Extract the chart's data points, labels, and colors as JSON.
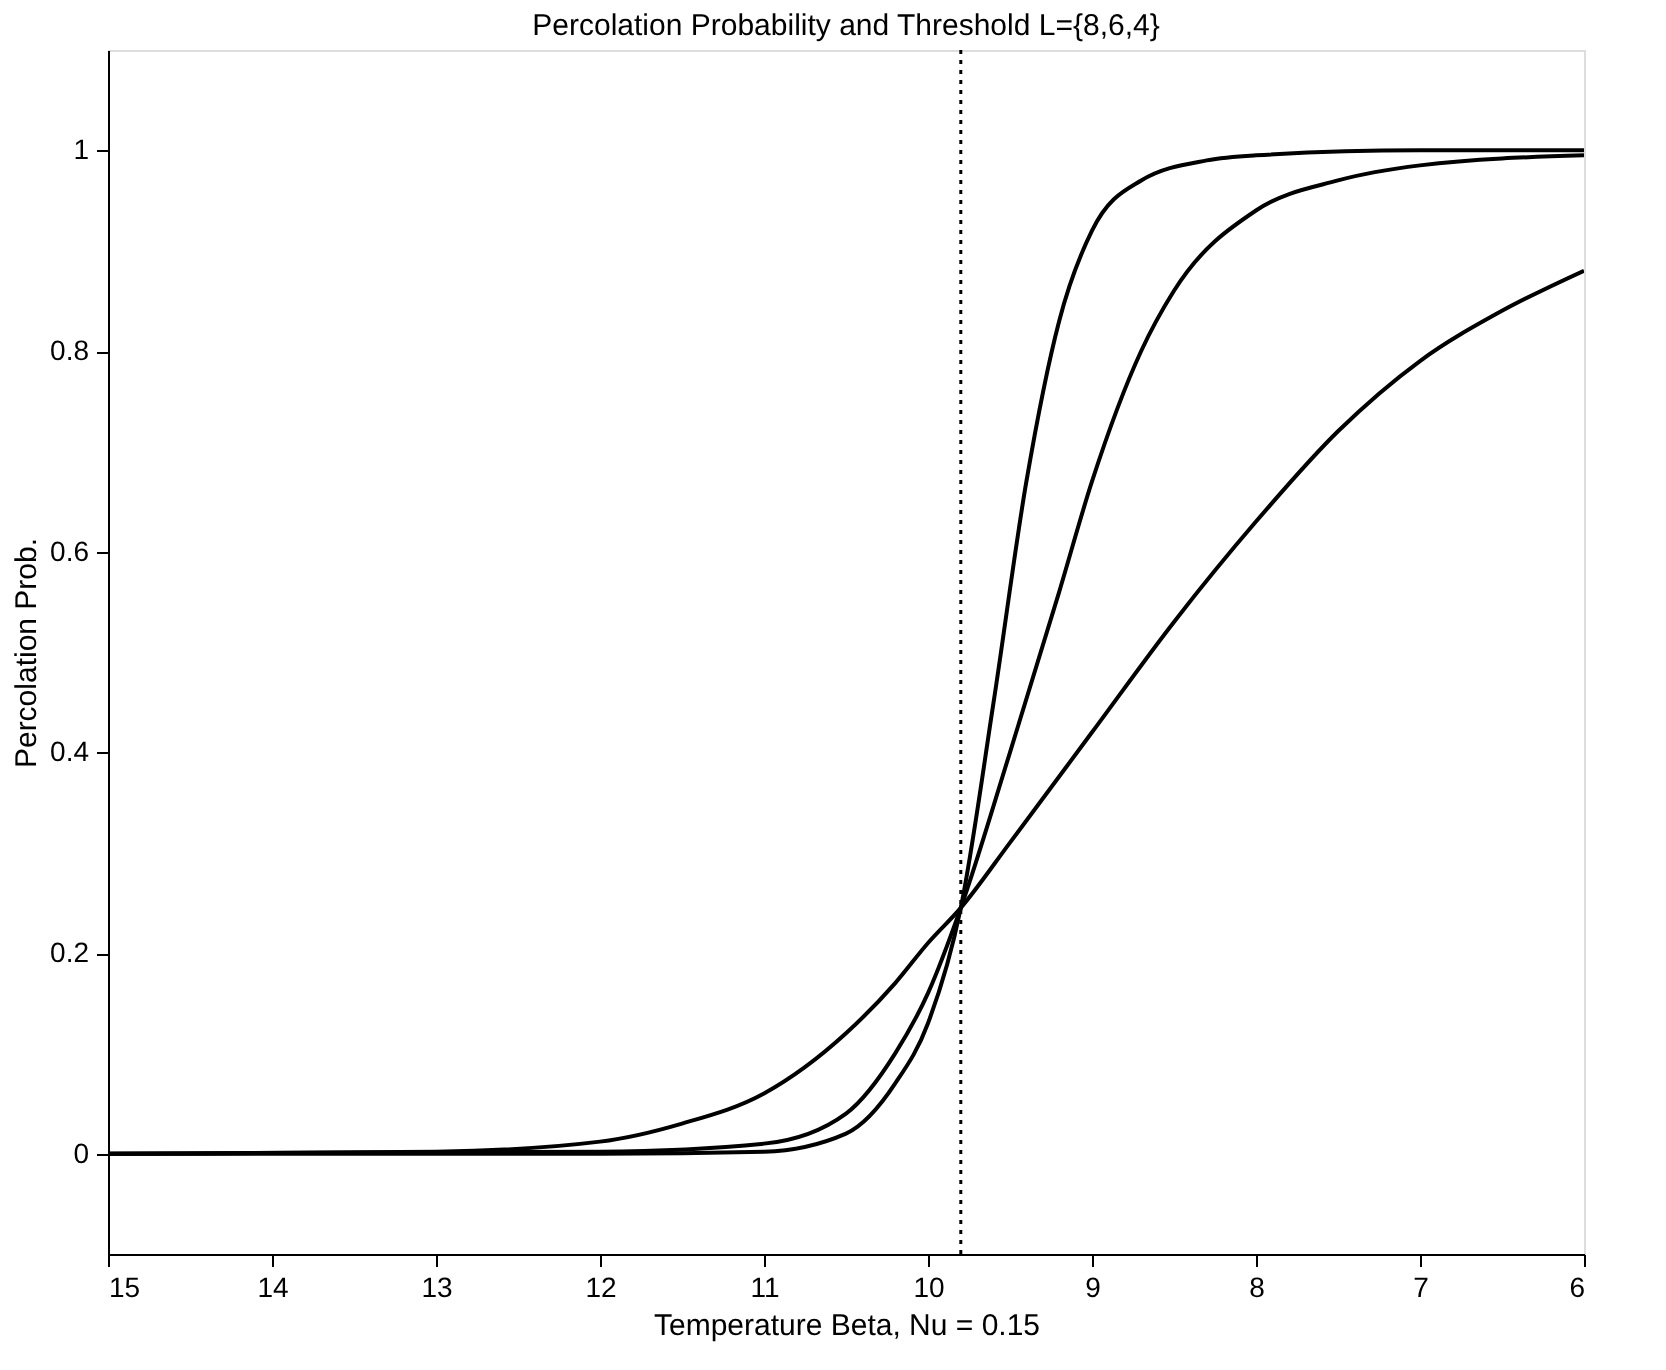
{
  "chart_data": {
    "type": "line",
    "title": "Percolation Probability and Threshold L={8,6,4}",
    "xlabel": "Temperature Beta, Nu = 0.15",
    "ylabel": "Percolation Prob.",
    "xlim": [
      15,
      6
    ],
    "xticks": [
      15,
      14,
      13,
      12,
      11,
      10,
      9,
      8,
      7,
      6
    ],
    "ylim": [
      -0.1,
      1.1
    ],
    "yticks": [
      0,
      0.2,
      0.4,
      0.6,
      0.8,
      1
    ],
    "grid": false,
    "marker": "none",
    "line_style": "solid",
    "series": [
      {
        "color": "#000000",
        "x": [
          15,
          12,
          11,
          10.5,
          10.2,
          10,
          9.8,
          9.6,
          9.4,
          9.2,
          9,
          8.7,
          8.3,
          8,
          7,
          6
        ],
        "values": [
          0,
          0,
          0.002,
          0.02,
          0.07,
          0.13,
          0.245,
          0.45,
          0.67,
          0.83,
          0.92,
          0.97,
          0.99,
          0.995,
          1,
          1
        ]
      },
      {
        "color": "#000000",
        "x": [
          15,
          12,
          11,
          10.5,
          10.2,
          10,
          9.8,
          9.5,
          9.2,
          9,
          8.7,
          8.5,
          8,
          7.5,
          7,
          6
        ],
        "values": [
          0,
          0.002,
          0.01,
          0.04,
          0.1,
          0.16,
          0.245,
          0.4,
          0.56,
          0.67,
          0.8,
          0.86,
          0.94,
          0.97,
          0.985,
          0.995
        ]
      },
      {
        "color": "#000000",
        "x": [
          15,
          13,
          12,
          11.5,
          11,
          10.5,
          10.2,
          10,
          9.8,
          9.5,
          9,
          8.5,
          8,
          7.5,
          7,
          6.5,
          6
        ],
        "values": [
          0,
          0.002,
          0.012,
          0.03,
          0.06,
          0.12,
          0.17,
          0.21,
          0.245,
          0.31,
          0.42,
          0.53,
          0.63,
          0.72,
          0.79,
          0.84,
          0.88
        ]
      }
    ],
    "ref_lines": [
      {
        "axis": "x",
        "value": 9.8,
        "color": "#000000",
        "line_style": "dotted"
      }
    ]
  }
}
